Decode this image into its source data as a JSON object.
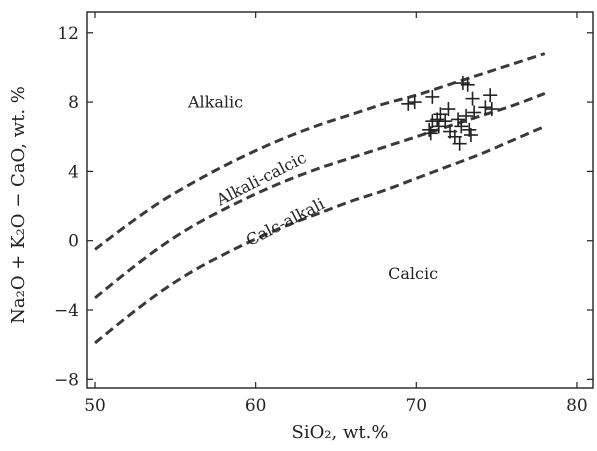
{
  "chart_data": {
    "type": "scatter",
    "xlabel": "SiO₂, wt.%",
    "ylabel": "Na₂O + K₂O − CaO, wt. %",
    "xlim": [
      49.5,
      81
    ],
    "ylim": [
      -8.5,
      13.2
    ],
    "xticks": [
      50,
      60,
      70,
      80
    ],
    "yticks": [
      -8,
      -4,
      0,
      4,
      8,
      12
    ],
    "grid": false,
    "boundaries": [
      {
        "name": "Alkalic / Alkali-calcic",
        "x": [
          50,
          52,
          54,
          56,
          58,
          60,
          62,
          64,
          66,
          68,
          70,
          72,
          74,
          76,
          78
        ],
        "y": [
          -0.5,
          0.9,
          2.2,
          3.3,
          4.3,
          5.2,
          6.0,
          6.7,
          7.3,
          7.9,
          8.4,
          9.0,
          9.6,
          10.2,
          10.8
        ]
      },
      {
        "name": "Alkali-calcic / Calc-alkali",
        "x": [
          50,
          52,
          54,
          56,
          58,
          60,
          62,
          64,
          66,
          68,
          70,
          72,
          74,
          76,
          78
        ],
        "y": [
          -3.3,
          -1.8,
          -0.4,
          0.8,
          1.8,
          2.7,
          3.5,
          4.2,
          4.8,
          5.4,
          6.0,
          6.6,
          7.2,
          7.8,
          8.5
        ]
      },
      {
        "name": "Calc-alkali / Calcic",
        "x": [
          50,
          52,
          54,
          56,
          58,
          60,
          62,
          64,
          66,
          68,
          70,
          72,
          74,
          76,
          78
        ],
        "y": [
          -5.9,
          -4.4,
          -3.0,
          -1.8,
          -0.8,
          0.1,
          0.9,
          1.6,
          2.3,
          2.9,
          3.6,
          4.3,
          5.0,
          5.8,
          6.6
        ]
      }
    ],
    "region_labels": [
      {
        "text": "Alkalic",
        "x": 57.5,
        "y": 7.7
      },
      {
        "text": "Alkali-calcic",
        "x": 60.5,
        "y": 3.3,
        "rotate": -27
      },
      {
        "text": "Calc-alkali",
        "x": 62,
        "y": 0.8,
        "rotate": -27
      },
      {
        "text": "Calcic",
        "x": 69.8,
        "y": -2.2
      }
    ],
    "points": [
      {
        "x": 69.5,
        "y": 7.9
      },
      {
        "x": 69.9,
        "y": 8.0
      },
      {
        "x": 71.0,
        "y": 8.3
      },
      {
        "x": 70.8,
        "y": 6.4
      },
      {
        "x": 70.9,
        "y": 6.2
      },
      {
        "x": 71.0,
        "y": 6.9
      },
      {
        "x": 71.3,
        "y": 7.0
      },
      {
        "x": 71.4,
        "y": 6.6
      },
      {
        "x": 71.5,
        "y": 7.3
      },
      {
        "x": 71.8,
        "y": 6.9
      },
      {
        "x": 72.0,
        "y": 7.6
      },
      {
        "x": 72.1,
        "y": 6.3
      },
      {
        "x": 72.4,
        "y": 6.0
      },
      {
        "x": 72.6,
        "y": 7.0
      },
      {
        "x": 72.8,
        "y": 6.6
      },
      {
        "x": 72.7,
        "y": 5.6
      },
      {
        "x": 72.9,
        "y": 9.1
      },
      {
        "x": 73.2,
        "y": 9.0
      },
      {
        "x": 73.1,
        "y": 7.2
      },
      {
        "x": 73.3,
        "y": 6.4
      },
      {
        "x": 73.4,
        "y": 6.1
      },
      {
        "x": 73.5,
        "y": 8.2
      },
      {
        "x": 73.6,
        "y": 7.4
      },
      {
        "x": 74.3,
        "y": 7.7
      },
      {
        "x": 74.6,
        "y": 8.4
      },
      {
        "x": 74.7,
        "y": 7.6
      }
    ]
  }
}
